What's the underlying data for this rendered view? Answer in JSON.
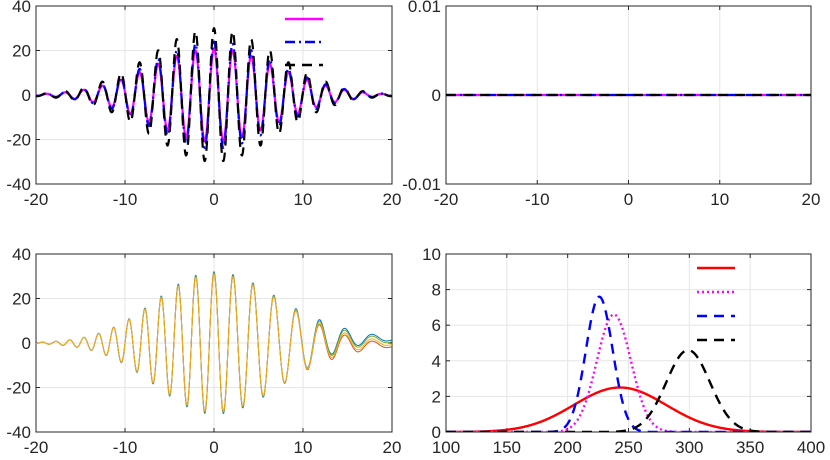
{
  "chart_data": [
    {
      "type": "line",
      "title": "",
      "xlabel": "",
      "ylabel": "",
      "xlim": [
        -20,
        20
      ],
      "ylim": [
        -40,
        40
      ],
      "x_ticks": [
        -20,
        -10,
        0,
        10,
        20
      ],
      "y_ticks": [
        -40,
        -20,
        0,
        20,
        40
      ],
      "grid": true,
      "legend_position": "top-right",
      "legend_labels_visible": false,
      "series": [
        {
          "style": "solid",
          "color": "#ff00ff",
          "function": "wavepacket",
          "amplitude": 21,
          "decay": 7,
          "frequency": 3.0
        },
        {
          "style": "dash-dot",
          "color": "#0000ff",
          "function": "wavepacket",
          "amplitude": 24,
          "decay": 7,
          "frequency": 3.0
        },
        {
          "style": "dashed",
          "color": "#000000",
          "function": "wavepacket",
          "amplitude": 30,
          "decay": 7,
          "frequency": 3.0
        }
      ]
    },
    {
      "type": "line",
      "title": "",
      "xlabel": "",
      "ylabel": "",
      "xlim": [
        -20,
        20
      ],
      "ylim": [
        -0.01,
        0.01
      ],
      "x_ticks": [
        -20,
        -10,
        0,
        10,
        20
      ],
      "y_ticks": [
        -0.01,
        0,
        0.01
      ],
      "y_tick_labels": [
        "-0.01",
        "0",
        "0.01"
      ],
      "grid": true,
      "series": [
        {
          "style": "solid",
          "color": "#ff00ff",
          "value": 0
        },
        {
          "style": "dash-dot",
          "color": "#0000ff",
          "value": 0
        },
        {
          "style": "dashed",
          "color": "#000000",
          "value": 0
        }
      ]
    },
    {
      "type": "line",
      "title": "",
      "xlabel": "",
      "ylabel": "",
      "xlim": [
        -20,
        20
      ],
      "ylim": [
        -40,
        40
      ],
      "x_ticks": [
        -20,
        -10,
        0,
        10,
        20
      ],
      "y_ticks": [
        -40,
        -20,
        0,
        20,
        40
      ],
      "grid": true,
      "series": [
        {
          "color": "#0072bd",
          "amplitude": 32,
          "tail_offset": 2.0
        },
        {
          "color": "#77ac30",
          "amplitude": 31.5,
          "tail_offset": 1.2
        },
        {
          "color": "#d95319",
          "amplitude": 31,
          "tail_offset": -1.0
        },
        {
          "color": "#edb120",
          "amplitude": 31,
          "tail_offset": 0
        }
      ]
    },
    {
      "type": "line",
      "title": "",
      "xlabel": "",
      "ylabel": "",
      "xlim": [
        100,
        400
      ],
      "ylim": [
        0,
        10
      ],
      "x_ticks": [
        100,
        150,
        200,
        250,
        300,
        350,
        400
      ],
      "y_ticks": [
        0,
        2,
        4,
        6,
        8,
        10
      ],
      "grid": true,
      "legend_position": "top-right",
      "legend_labels_visible": false,
      "series": [
        {
          "style": "solid",
          "color": "#ff0000",
          "distribution": "gaussian",
          "peak": 2.5,
          "center": 243,
          "width": 38
        },
        {
          "style": "dotted",
          "color": "#ff00ff",
          "distribution": "gaussian",
          "peak": 6.6,
          "center": 238,
          "width": 14
        },
        {
          "style": "dashed",
          "color": "#0000ff",
          "distribution": "gaussian",
          "peak": 7.6,
          "center": 226,
          "width": 11
        },
        {
          "style": "dashed",
          "color": "#000000",
          "distribution": "gaussian",
          "peak": 4.6,
          "center": 299,
          "width": 18
        }
      ]
    }
  ]
}
